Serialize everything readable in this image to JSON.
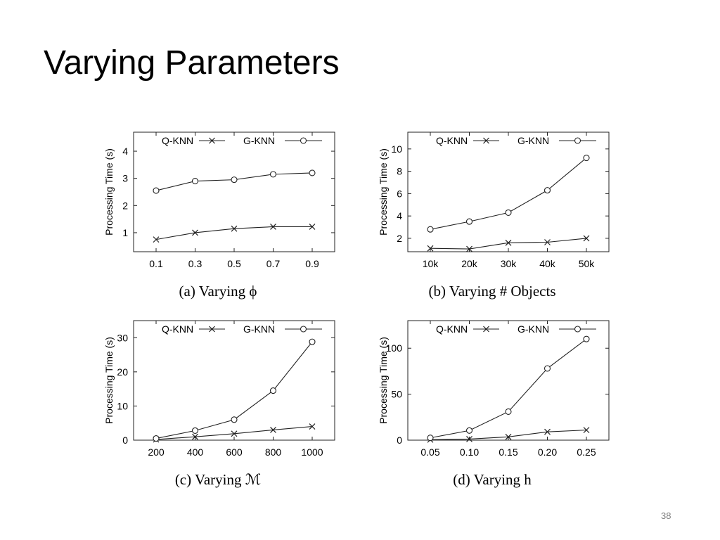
{
  "slide": {
    "title": "Varying Parameters",
    "page_number": "38"
  },
  "chart_data": [
    {
      "type": "line",
      "caption": "(a) Varying ϕ",
      "ylabel": "Processing Time (s)",
      "xlabel": "",
      "categories": [
        "0.1",
        "0.3",
        "0.5",
        "0.7",
        "0.9"
      ],
      "yticks": [
        1,
        2,
        3,
        4
      ],
      "ylim": [
        0.3,
        4.7
      ],
      "legend": "top",
      "grid": false,
      "series": [
        {
          "name": "Q-KNN",
          "marker": "x",
          "values": [
            0.75,
            1.0,
            1.15,
            1.22,
            1.22
          ]
        },
        {
          "name": "G-KNN",
          "marker": "o",
          "values": [
            2.55,
            2.9,
            2.95,
            3.15,
            3.2
          ]
        }
      ]
    },
    {
      "type": "line",
      "caption": "(b) Varying # Objects",
      "ylabel": "Processing Time (s)",
      "xlabel": "",
      "categories": [
        "10k",
        "20k",
        "30k",
        "40k",
        "50k"
      ],
      "yticks": [
        2,
        4,
        6,
        8,
        10
      ],
      "ylim": [
        0.8,
        11.5
      ],
      "legend": "top",
      "grid": false,
      "series": [
        {
          "name": "Q-KNN",
          "marker": "x",
          "values": [
            1.1,
            1.05,
            1.6,
            1.65,
            2.0
          ]
        },
        {
          "name": "G-KNN",
          "marker": "o",
          "values": [
            2.8,
            3.5,
            4.3,
            6.3,
            9.2
          ]
        }
      ]
    },
    {
      "type": "line",
      "caption": "(c) Varying ℳ",
      "ylabel": "Processing Time (s)",
      "xlabel": "",
      "categories": [
        "200",
        "400",
        "600",
        "800",
        "1000"
      ],
      "yticks": [
        0,
        10,
        20,
        30
      ],
      "ylim": [
        0,
        35
      ],
      "legend": "top",
      "grid": false,
      "series": [
        {
          "name": "Q-KNN",
          "marker": "x",
          "values": [
            0.2,
            1.0,
            1.9,
            3.0,
            4.0
          ]
        },
        {
          "name": "G-KNN",
          "marker": "o",
          "values": [
            0.5,
            2.8,
            6.0,
            14.5,
            28.8
          ]
        }
      ]
    },
    {
      "type": "line",
      "caption": "(d) Varying h",
      "ylabel": "Processing Time (s)",
      "xlabel": "",
      "categories": [
        "0.05",
        "0.10",
        "0.15",
        "0.20",
        "0.25"
      ],
      "yticks": [
        0,
        50,
        100
      ],
      "ylim": [
        0,
        130
      ],
      "legend": "top",
      "grid": false,
      "series": [
        {
          "name": "Q-KNN",
          "marker": "x",
          "values": [
            0.5,
            1.2,
            3.6,
            9.0,
            11.0
          ]
        },
        {
          "name": "G-KNN",
          "marker": "o",
          "values": [
            2.5,
            10.5,
            31.0,
            78.0,
            110.0
          ]
        }
      ]
    }
  ]
}
